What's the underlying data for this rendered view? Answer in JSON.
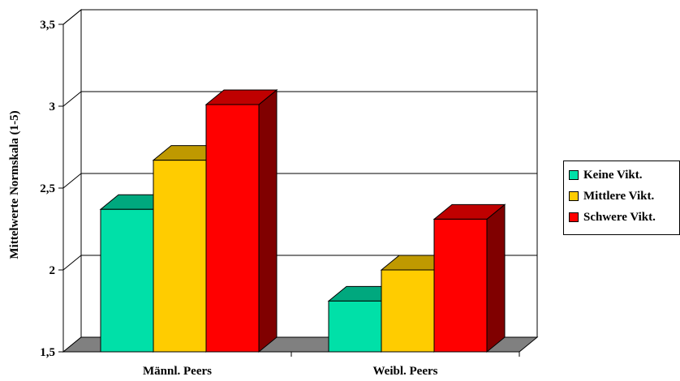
{
  "chart_data": {
    "type": "bar",
    "ylabel": "Mittelwerte Normskala (1-5)",
    "xlabel": "",
    "title": "",
    "ylim": [
      1.5,
      3.5
    ],
    "yticks": [
      "1,5",
      "2",
      "2,5",
      "3",
      "3,5"
    ],
    "categories": [
      "Männl. Peers",
      "Weibl.  Peers"
    ],
    "series": [
      {
        "name": "Keine Vikt.",
        "values": [
          2.37,
          1.81
        ],
        "color": "#00e0a8"
      },
      {
        "name": "Mittlere Vikt.",
        "values": [
          2.67,
          2.0
        ],
        "color": "#ffcc00"
      },
      {
        "name": "Schwere Vikt.",
        "values": [
          3.01,
          2.31
        ],
        "color": "#ff0000"
      }
    ],
    "grid": true,
    "legend_position": "right",
    "style": "3d"
  },
  "legend": {
    "items": [
      {
        "label": "Keine Vikt.",
        "color": "#00e0a8"
      },
      {
        "label": "Mittlere Vikt.",
        "color": "#ffcc00"
      },
      {
        "label": "Schwere Vikt.",
        "color": "#ff0000"
      }
    ]
  }
}
